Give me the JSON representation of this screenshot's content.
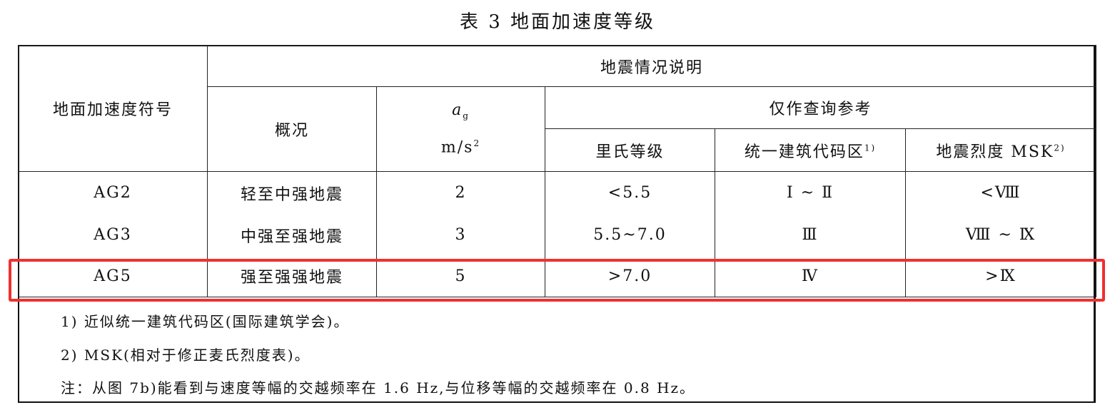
{
  "title": "表 3   地面加速度等级",
  "header": {
    "symbol": "地面加速度符号",
    "group": "地震情况说明",
    "overview": "概况",
    "ag_symbol": "a",
    "ag_sub": "g",
    "ag_unit": "m/s",
    "ag_unit_sup": "2",
    "reference": "仅作查询参考",
    "richter": "里氏等级",
    "ubc": "统一建筑代码区",
    "ubc_note": "1)",
    "msk": "地震烈度 MSK",
    "msk_note": "2)"
  },
  "rows": [
    {
      "symbol": "AG2",
      "overview": "轻至中强地震",
      "ag": "2",
      "richter": "<5.5",
      "ubc": "Ⅰ ~ Ⅱ",
      "msk": "<Ⅷ"
    },
    {
      "symbol": "AG3",
      "overview": "中强至强地震",
      "ag": "3",
      "richter": "5.5~7.0",
      "ubc": "Ⅲ",
      "msk": "Ⅷ ~ Ⅸ"
    },
    {
      "symbol": "AG5",
      "overview": "强至强强地震",
      "ag": "5",
      "richter": ">7.0",
      "ubc": "Ⅳ",
      "msk": ">Ⅸ"
    }
  ],
  "notes": [
    "1) 近似统一建筑代码区(国际建筑学会)。",
    "2) MSK(相对于修正麦氏烈度表)。",
    "注：从图 7b)能看到与速度等幅的交越频率在 1.6 Hz,与位移等幅的交越频率在 0.8 Hz。"
  ],
  "highlight_color": "#f03030"
}
